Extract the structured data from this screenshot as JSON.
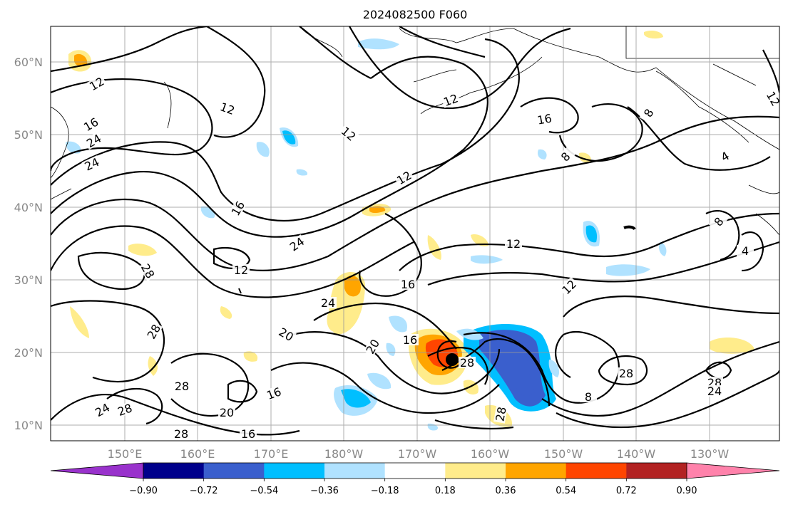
{
  "title": "2024082500 F060",
  "map": {
    "lat_labels": [
      "60°N",
      "50°N",
      "40°N",
      "30°N",
      "20°N",
      "10°N"
    ],
    "lon_labels": [
      "150°E",
      "160°E",
      "170°E",
      "180°W",
      "170°W",
      "160°W",
      "150°W",
      "140°W",
      "130°W"
    ],
    "gridlines": true,
    "contour_labels": [
      "12",
      "16",
      "24",
      "12",
      "12",
      "16",
      "24",
      "12",
      "12",
      "16",
      "8",
      "4",
      "8",
      "12",
      "28",
      "24",
      "28",
      "16",
      "24",
      "20",
      "12",
      "12",
      "16",
      "20",
      "28",
      "28",
      "24",
      "28",
      "16",
      "20",
      "28",
      "8",
      "28",
      "24",
      "28",
      "12",
      "8",
      "4",
      "28",
      "16"
    ]
  },
  "colorbar": {
    "ticks": [
      "−0.90",
      "−0.72",
      "−0.54",
      "−0.36",
      "−0.18",
      "0.18",
      "0.36",
      "0.54",
      "0.72",
      "0.90"
    ],
    "colors": [
      "#9932cc",
      "#00008b",
      "#3a5fcd",
      "#00bfff",
      "#b0e2ff",
      "#ffffff",
      "#ffec8b",
      "#ffa500",
      "#ff4500",
      "#b22222",
      "#ff82ab"
    ],
    "extend": "both"
  }
}
